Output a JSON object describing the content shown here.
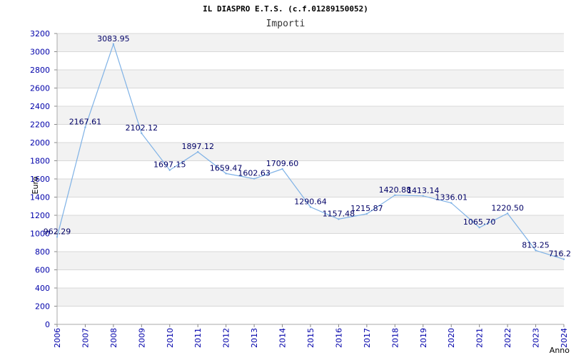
{
  "chart_data": {
    "type": "line",
    "title": "IL DIASPRO E.T.S. (c.f.01289150052)",
    "subtitle": "Importi",
    "xlabel": "Anno",
    "ylabel": "Euro",
    "ylim": [
      0,
      3200
    ],
    "yticks": [
      "0",
      "200",
      "400",
      "600",
      "800",
      "1000",
      "1200",
      "1400",
      "1600",
      "1800",
      "2000",
      "2200",
      "2400",
      "2600",
      "2800",
      "3000",
      "3200"
    ],
    "x": [
      "2006",
      "2007",
      "2008",
      "2009",
      "2010",
      "2011",
      "2012",
      "2013",
      "2014",
      "2015",
      "2016",
      "2017",
      "2018",
      "2019",
      "2020",
      "2021",
      "2022",
      "2023",
      "2024"
    ],
    "values": [
      962.29,
      2167.61,
      3083.95,
      2102.12,
      1697.15,
      1897.12,
      1659.47,
      1602.63,
      1709.6,
      1290.64,
      1157.48,
      1215.87,
      1420.88,
      1413.14,
      1336.01,
      1065.7,
      1220.5,
      813.25,
      716.2
    ],
    "labels": [
      "962.29",
      "2167.61",
      "3083.95",
      "2102.12",
      "1697.15",
      "1897.12",
      "1659.47",
      "1602.63",
      "1709.60",
      "1290.64",
      "1157.48",
      "1215.87",
      "1420.88",
      "1413.14",
      "1336.01",
      "1065.70",
      "1220.50",
      "813.25",
      "716.2"
    ],
    "grid": true,
    "legend": "none",
    "colors": {
      "line": "#7fb2e6",
      "band": "#f2f2f2",
      "grid": "#d8d8d8",
      "tick": "#0000aa",
      "label": "#000066"
    }
  }
}
